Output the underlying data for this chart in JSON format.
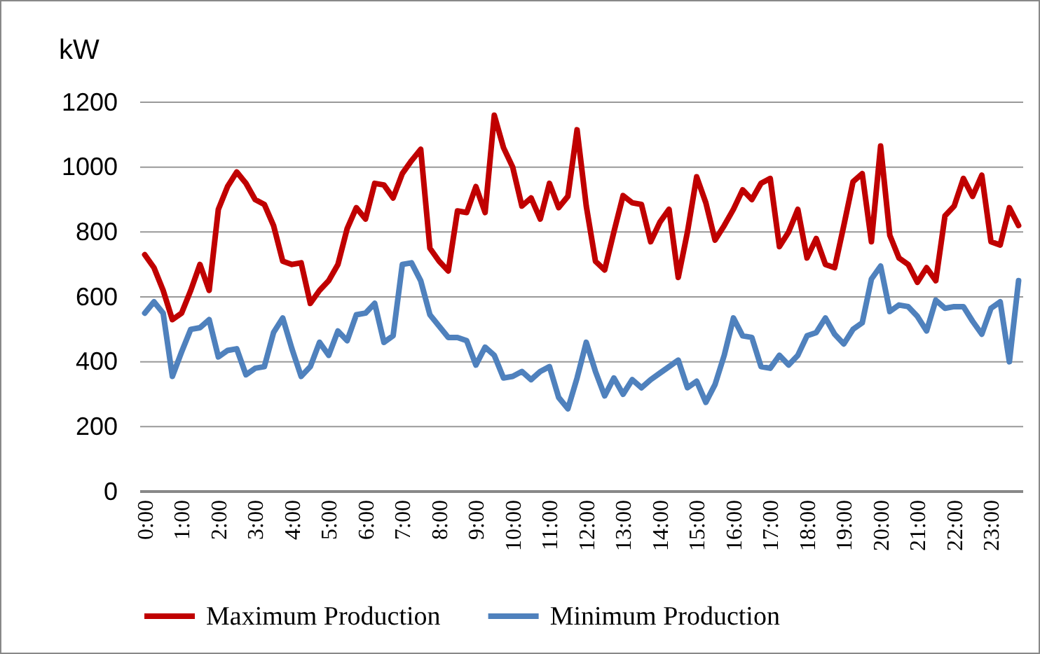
{
  "chart_data": {
    "type": "line",
    "ylabel": "kW",
    "categories": [
      "0:00",
      null,
      null,
      null,
      "1:00",
      null,
      null,
      null,
      "2:00",
      null,
      null,
      null,
      "3:00",
      null,
      null,
      null,
      "4:00",
      null,
      null,
      null,
      "5:00",
      null,
      null,
      null,
      "6:00",
      null,
      null,
      null,
      "7:00",
      null,
      null,
      null,
      "8:00",
      null,
      null,
      null,
      "9:00",
      null,
      null,
      null,
      "10:00",
      null,
      null,
      null,
      "11:00",
      null,
      null,
      null,
      "12:00",
      null,
      null,
      null,
      "13:00",
      null,
      null,
      null,
      "14:00",
      null,
      null,
      null,
      "15:00",
      null,
      null,
      null,
      "16:00",
      null,
      null,
      null,
      "17:00",
      null,
      null,
      null,
      "18:00",
      null,
      null,
      null,
      "19:00",
      null,
      null,
      null,
      "20:00",
      null,
      null,
      null,
      "21:00",
      null,
      null,
      null,
      "22:00",
      null,
      null,
      null,
      "23:00",
      null,
      null,
      null
    ],
    "series": [
      {
        "name": "Maximum Production",
        "color": "#c00000",
        "values": [
          730,
          690,
          620,
          530,
          550,
          620,
          700,
          620,
          870,
          940,
          985,
          950,
          900,
          885,
          820,
          710,
          700,
          705,
          580,
          620,
          650,
          700,
          810,
          875,
          840,
          950,
          945,
          905,
          980,
          1020,
          1055,
          750,
          710,
          680,
          865,
          860,
          940,
          860,
          1160,
          1060,
          1000,
          880,
          905,
          840,
          950,
          875,
          910,
          1115,
          880,
          710,
          683,
          800,
          912,
          890,
          885,
          770,
          830,
          870,
          660,
          800,
          970,
          890,
          775,
          820,
          870,
          930,
          900,
          950,
          965,
          755,
          800,
          870,
          720,
          780,
          700,
          690,
          820,
          955,
          980,
          770,
          1065,
          790,
          720,
          700,
          645,
          690,
          650,
          850,
          880,
          965,
          910,
          975,
          770,
          760,
          875,
          820
        ]
      },
      {
        "name": "Minimum Production",
        "color": "#4f81bd",
        "values": [
          550,
          585,
          550,
          355,
          430,
          500,
          505,
          530,
          415,
          435,
          440,
          360,
          380,
          385,
          490,
          535,
          440,
          355,
          385,
          460,
          420,
          495,
          465,
          545,
          550,
          580,
          460,
          480,
          700,
          705,
          650,
          545,
          510,
          475,
          475,
          465,
          390,
          445,
          420,
          350,
          355,
          370,
          345,
          370,
          385,
          290,
          255,
          350,
          460,
          370,
          295,
          350,
          300,
          345,
          320,
          345,
          365,
          385,
          405,
          320,
          340,
          275,
          330,
          420,
          535,
          480,
          475,
          385,
          380,
          420,
          390,
          420,
          480,
          490,
          535,
          485,
          455,
          500,
          520,
          655,
          695,
          555,
          575,
          570,
          540,
          495,
          590,
          565,
          570,
          570,
          525,
          485,
          565,
          585,
          400,
          650
        ]
      }
    ],
    "ylim": [
      0,
      1200
    ],
    "yticks": [
      0,
      200,
      400,
      600,
      800,
      1000,
      1200
    ],
    "grid": "y",
    "legend": "bottom",
    "marker": "none",
    "line_style": "solid"
  }
}
